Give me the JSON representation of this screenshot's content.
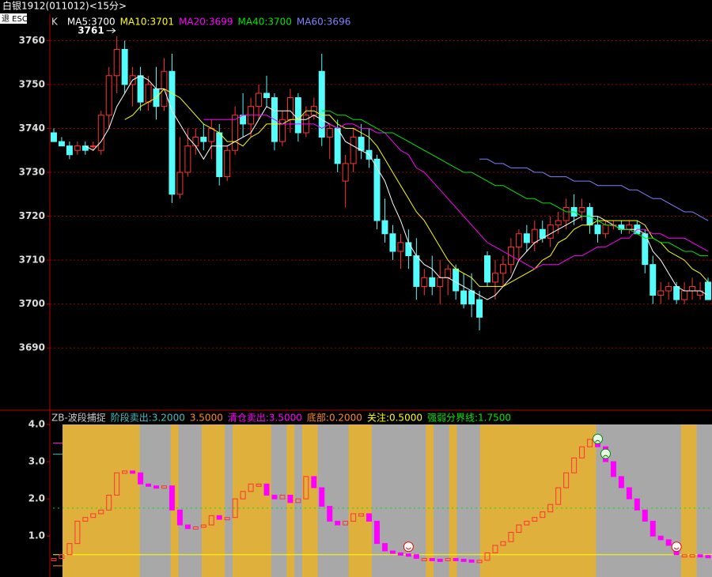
{
  "header": {
    "title": "白银1912(011012)<15分>",
    "esc": "退 ESC"
  },
  "chart_data": [
    {
      "type": "candlestick",
      "kind_label": "K",
      "up_color": "#ff3232",
      "down_color": "#54fcfc",
      "grid": true,
      "ylim": [
        3676,
        3766
      ],
      "yticks": [
        3690,
        3700,
        3710,
        3720,
        3730,
        3740,
        3750,
        3760
      ],
      "high_label": 3761,
      "high_index": 8,
      "candles": [
        [
          3739,
          3740,
          3737,
          3737
        ],
        [
          3737,
          3738,
          3736,
          3736
        ],
        [
          3736,
          3737,
          3733,
          3734
        ],
        [
          3735,
          3737,
          3734,
          3736
        ],
        [
          3736,
          3737,
          3734,
          3735
        ],
        [
          3736,
          3737,
          3735,
          3736
        ],
        [
          3735,
          3744,
          3734,
          3743
        ],
        [
          3743,
          3754,
          3740,
          3752
        ],
        [
          3752,
          3761,
          3748,
          3758
        ],
        [
          3758,
          3760,
          3748,
          3750
        ],
        [
          3750,
          3754,
          3745,
          3752
        ],
        [
          3752,
          3754,
          3744,
          3746
        ],
        [
          3746,
          3752,
          3744,
          3750
        ],
        [
          3749,
          3754,
          3742,
          3745
        ],
        [
          3745,
          3756,
          3744,
          3753
        ],
        [
          3753,
          3757,
          3723,
          3725
        ],
        [
          3725,
          3738,
          3724,
          3730
        ],
        [
          3730,
          3740,
          3729,
          3736
        ],
        [
          3736,
          3740,
          3734,
          3738
        ],
        [
          3738,
          3741,
          3735,
          3737
        ],
        [
          3737,
          3742,
          3733,
          3740
        ],
        [
          3739,
          3741,
          3727,
          3729
        ],
        [
          3729,
          3736,
          3728,
          3735
        ],
        [
          3735,
          3745,
          3734,
          3743
        ],
        [
          3743,
          3748,
          3738,
          3741
        ],
        [
          3741,
          3747,
          3738,
          3745
        ],
        [
          3745,
          3750,
          3742,
          3748
        ],
        [
          3748,
          3752,
          3745,
          3747
        ],
        [
          3747,
          3748,
          3735,
          3737
        ],
        [
          3737,
          3744,
          3736,
          3742
        ],
        [
          3742,
          3749,
          3739,
          3747
        ],
        [
          3747,
          3748,
          3737,
          3739
        ],
        [
          3739,
          3745,
          3738,
          3743
        ],
        [
          3743,
          3747,
          3742,
          3745
        ],
        [
          3753,
          3757,
          3736,
          3738
        ],
        [
          3738,
          3741,
          3733,
          3740
        ],
        [
          3740,
          3742,
          3730,
          3732
        ],
        [
          3728,
          3734,
          3722,
          3732
        ],
        [
          3732,
          3740,
          3730,
          3738
        ],
        [
          3738,
          3741,
          3733,
          3735
        ],
        [
          3735,
          3740,
          3731,
          3733
        ],
        [
          3733,
          3734,
          3717,
          3719
        ],
        [
          3719,
          3724,
          3714,
          3716
        ],
        [
          3716,
          3718,
          3710,
          3712
        ],
        [
          3712,
          3716,
          3708,
          3714
        ],
        [
          3714,
          3717,
          3708,
          3711
        ],
        [
          3711,
          3715,
          3701,
          3704
        ],
        [
          3704,
          3708,
          3702,
          3706
        ],
        [
          3706,
          3711,
          3702,
          3704
        ],
        [
          3704,
          3710,
          3700,
          3706
        ],
        [
          3706,
          3709,
          3702,
          3708
        ],
        [
          3708,
          3709,
          3701,
          3703
        ],
        [
          3703,
          3707,
          3699,
          3700
        ],
        [
          3703,
          3707,
          3697,
          3700
        ],
        [
          3701,
          3703,
          3694,
          3697
        ],
        [
          3711,
          3712,
          3704,
          3705
        ],
        [
          3705,
          3710,
          3701,
          3707
        ],
        [
          3707,
          3711,
          3704,
          3709
        ],
        [
          3709,
          3715,
          3707,
          3713
        ],
        [
          3713,
          3717,
          3710,
          3716
        ],
        [
          3716,
          3718,
          3712,
          3714
        ],
        [
          3714,
          3719,
          3712,
          3717
        ],
        [
          3717,
          3719,
          3714,
          3715
        ],
        [
          3715,
          3720,
          3713,
          3718
        ],
        [
          3718,
          3721,
          3716,
          3719
        ],
        [
          3719,
          3724,
          3717,
          3722
        ],
        [
          3722,
          3725,
          3718,
          3720
        ],
        [
          3721,
          3724,
          3719,
          3722
        ],
        [
          3722,
          3723,
          3716,
          3718
        ],
        [
          3718,
          3720,
          3714,
          3716
        ],
        [
          3716,
          3719,
          3715,
          3718
        ],
        [
          3718,
          3719,
          3717,
          3718
        ],
        [
          3718,
          3719,
          3716,
          3717
        ],
        [
          3717,
          3719,
          3716,
          3718
        ],
        [
          3718,
          3719,
          3716,
          3716
        ],
        [
          3716,
          3717,
          3707,
          3709
        ],
        [
          3709,
          3711,
          3700,
          3702
        ],
        [
          3702,
          3705,
          3700,
          3703
        ],
        [
          3703,
          3705,
          3701,
          3704
        ],
        [
          3704,
          3705,
          3700,
          3701
        ],
        [
          3701,
          3705,
          3700,
          3703
        ],
        [
          3703,
          3706,
          3701,
          3704
        ],
        [
          3702,
          3705,
          3701,
          3703
        ],
        [
          3705,
          3706,
          3701,
          3701
        ]
      ],
      "series": [
        {
          "name": "MA5:3700",
          "color": "#ffffff",
          "values": [
            null,
            null,
            null,
            null,
            3736,
            3735,
            3737,
            3740,
            3745,
            3748,
            3751,
            3752,
            3751,
            3749,
            3749,
            3744,
            3741,
            3738,
            3736,
            3733,
            3736,
            3736,
            3736,
            3737,
            3738,
            3739,
            3742,
            3745,
            3744,
            3744,
            3744,
            3742,
            3742,
            3743,
            3742,
            3741,
            3740,
            3737,
            3736,
            3735,
            3734,
            3731,
            3728,
            3723,
            3719,
            3714,
            3711,
            3709,
            3708,
            3706,
            3706,
            3705,
            3704,
            3703,
            3702,
            3701,
            3702,
            3704,
            3706,
            3710,
            3712,
            3714,
            3715,
            3716,
            3717,
            3718,
            3719,
            3720,
            3720,
            3720,
            3719,
            3718,
            3717,
            3717,
            3717,
            3716,
            3712,
            3710,
            3707,
            3704,
            3703,
            3703,
            3703,
            3702
          ]
        },
        {
          "name": "MA10:3701",
          "color": "#ffff00",
          "values": [
            null,
            null,
            null,
            null,
            null,
            null,
            null,
            null,
            null,
            3742,
            3743,
            3745,
            3746,
            3747,
            3749,
            3748,
            3747,
            3745,
            3743,
            3741,
            3740,
            3739,
            3737,
            3737,
            3736,
            3738,
            3739,
            3741,
            3741,
            3741,
            3742,
            3742,
            3744,
            3744,
            3743,
            3743,
            3741,
            3740,
            3740,
            3739,
            3738,
            3736,
            3733,
            3730,
            3727,
            3724,
            3721,
            3719,
            3716,
            3713,
            3710,
            3708,
            3707,
            3706,
            3704,
            3704,
            3704,
            3704,
            3705,
            3706,
            3707,
            3708,
            3710,
            3711,
            3714,
            3715,
            3717,
            3718,
            3718,
            3719,
            3719,
            3719,
            3719,
            3719,
            3719,
            3718,
            3715,
            3714,
            3712,
            3711,
            3710,
            3708,
            3707,
            3705
          ]
        },
        {
          "name": "MA20:3699",
          "color": "#ff00ff",
          "values": [
            null,
            null,
            null,
            null,
            null,
            null,
            null,
            null,
            null,
            null,
            null,
            null,
            null,
            null,
            null,
            null,
            null,
            null,
            null,
            3742,
            3742,
            3742,
            3742,
            3742,
            3743,
            3743,
            3743,
            3743,
            3742,
            3741,
            3741,
            3741,
            3741,
            3741,
            3740,
            3741,
            3740,
            3741,
            3741,
            3740,
            3740,
            3739,
            3739,
            3737,
            3735,
            3734,
            3731,
            3730,
            3728,
            3726,
            3724,
            3722,
            3720,
            3718,
            3716,
            3714,
            3713,
            3712,
            3711,
            3710,
            3709,
            3708,
            3709,
            3709,
            3709,
            3710,
            3711,
            3711,
            3712,
            3713,
            3713,
            3714,
            3715,
            3715,
            3717,
            3717,
            3716,
            3716,
            3715,
            3715,
            3715,
            3714,
            3713,
            3712
          ]
        },
        {
          "name": "MA40:3700",
          "color": "#00e600",
          "values": [
            null,
            null,
            null,
            null,
            null,
            null,
            null,
            null,
            null,
            null,
            null,
            null,
            null,
            null,
            null,
            null,
            null,
            null,
            null,
            null,
            null,
            null,
            null,
            null,
            null,
            null,
            null,
            null,
            null,
            null,
            null,
            null,
            null,
            null,
            3744,
            3744,
            3743,
            3743,
            3742,
            3742,
            3741,
            3740,
            3739,
            3739,
            3738,
            3737,
            3736,
            3735,
            3734,
            3733,
            3732,
            3731,
            3730,
            3730,
            3729,
            3728,
            3727,
            3727,
            3726,
            3725,
            3724,
            3724,
            3723,
            3723,
            3722,
            3721,
            3721,
            3720,
            3720,
            3719,
            3718,
            3718,
            3717,
            3717,
            3716,
            3715,
            3715,
            3714,
            3714,
            3713,
            3712,
            3712,
            3711,
            3711
          ]
        },
        {
          "name": "MA60:3696",
          "color": "#8080ff",
          "values": [
            null,
            null,
            null,
            null,
            null,
            null,
            null,
            null,
            null,
            null,
            null,
            null,
            null,
            null,
            null,
            null,
            null,
            null,
            null,
            null,
            null,
            null,
            null,
            null,
            null,
            null,
            null,
            null,
            null,
            null,
            null,
            null,
            null,
            null,
            null,
            null,
            null,
            null,
            null,
            null,
            null,
            null,
            null,
            null,
            null,
            null,
            null,
            null,
            null,
            null,
            null,
            null,
            null,
            null,
            3733,
            3733,
            3732,
            3732,
            3731,
            3731,
            3731,
            3730,
            3730,
            3729,
            3729,
            3729,
            3728,
            3728,
            3728,
            3727,
            3727,
            3727,
            3727,
            3726,
            3726,
            3725,
            3724,
            3724,
            3723,
            3722,
            3721,
            3721,
            3720,
            3719
          ]
        }
      ]
    },
    {
      "type": "step-bar",
      "title": "ZB-波段捕捉",
      "rise_color": "#ff3232",
      "fall_color": "#ff00ff",
      "rise_band": "#e0b03c",
      "fall_band": "#a8a8a8",
      "ylim": [
        -0.1,
        4.0
      ],
      "yticks": [
        {
          "value": 1,
          "label": "1.0"
        },
        {
          "value": 2,
          "label": "2.0"
        },
        {
          "value": 3,
          "label": "3.0"
        },
        {
          "value": 4,
          "label": "4.0"
        }
      ],
      "levels": [
        {
          "name": "阶段卖出:",
          "value": 3.2,
          "label": "3.2000",
          "color": "#40c0c0",
          "style": "tick"
        },
        {
          "value": 3.5,
          "label": "3.5000",
          "color": "#ff8c1a",
          "style": "tick"
        },
        {
          "name": "清仓卖出:",
          "value": 3.5,
          "label": "3.5000",
          "color": "#ff00ff",
          "style": "tick"
        },
        {
          "name": "底部:",
          "value": 0.2,
          "label": "0.2000",
          "color": "#ff8c1a",
          "style": "tick"
        },
        {
          "name": "关注:",
          "value": 0.5,
          "label": "0.5000",
          "color": "#ffff00",
          "style": "line"
        },
        {
          "name": "强弱分界线:",
          "value": 1.75,
          "label": "1.7500",
          "color": "#00e600",
          "style": "dotted"
        }
      ],
      "values": [
        0.4,
        0.5,
        0.8,
        1.4,
        1.5,
        1.6,
        1.7,
        2.1,
        2.7,
        2.75,
        2.7,
        2.4,
        2.35,
        2.3,
        2.35,
        1.7,
        1.3,
        1.2,
        1.25,
        1.3,
        1.55,
        1.45,
        1.5,
        2.0,
        2.2,
        2.4,
        2.4,
        2.1,
        2.0,
        2.1,
        1.9,
        2.0,
        2.6,
        2.3,
        1.8,
        1.4,
        1.3,
        1.4,
        1.6,
        1.6,
        1.4,
        0.8,
        0.6,
        0.55,
        0.52,
        0.5,
        0.4,
        0.4,
        0.38,
        0.37,
        0.4,
        0.38,
        0.36,
        0.35,
        0.35,
        0.55,
        0.75,
        0.85,
        1.1,
        1.3,
        1.4,
        1.5,
        1.65,
        1.85,
        2.3,
        2.7,
        3.1,
        3.4,
        3.6,
        3.4,
        3.0,
        2.6,
        2.3,
        2.0,
        1.7,
        1.4,
        1.0,
        0.9,
        0.75,
        0.5,
        0.5,
        0.5,
        0.48,
        0.45
      ]
    }
  ]
}
